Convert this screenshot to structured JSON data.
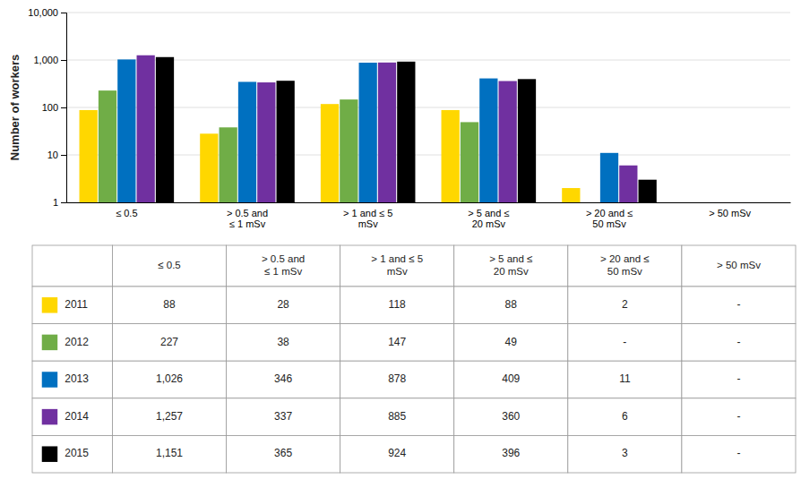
{
  "chart_data": {
    "type": "bar",
    "y_label": "Number of workers",
    "categories": [
      "≤ 0.5",
      "> 0.5 and\n≤ 1 mSv",
      "> 1 and ≤ 5\nmSv",
      "> 5 and ≤\n20 mSv",
      "> 20 and ≤\n50 mSv",
      "> 50 mSv"
    ],
    "series": [
      {
        "name": "2011",
        "color": "#FFD700",
        "values": [
          88,
          28,
          118,
          88,
          2,
          null
        ],
        "value_labels": [
          "88",
          "28",
          "118",
          "88",
          "2",
          "-"
        ]
      },
      {
        "name": "2012",
        "color": "#70AD47",
        "values": [
          227,
          38,
          147,
          49,
          null,
          null
        ],
        "value_labels": [
          "227",
          "38",
          "147",
          "49",
          "-",
          "-"
        ]
      },
      {
        "name": "2013",
        "color": "#0070C0",
        "values": [
          1026,
          346,
          878,
          409,
          11,
          null
        ],
        "value_labels": [
          "1,026",
          "346",
          "878",
          "409",
          "11",
          "-"
        ]
      },
      {
        "name": "2014",
        "color": "#7030A0",
        "values": [
          1257,
          337,
          885,
          360,
          6,
          null
        ],
        "value_labels": [
          "1,257",
          "337",
          "885",
          "360",
          "6",
          "-"
        ]
      },
      {
        "name": "2015",
        "color": "#000000",
        "values": [
          1151,
          365,
          924,
          396,
          3,
          null
        ],
        "value_labels": [
          "1,151",
          "365",
          "924",
          "396",
          "3",
          "-"
        ]
      }
    ],
    "ylim": [
      1,
      10000
    ],
    "yticks": [
      1,
      10,
      100,
      {
        "value": 1000,
        "label": "1,000"
      },
      {
        "value": 10000,
        "label": "10,000"
      }
    ],
    "log": "y",
    "grid": true
  }
}
